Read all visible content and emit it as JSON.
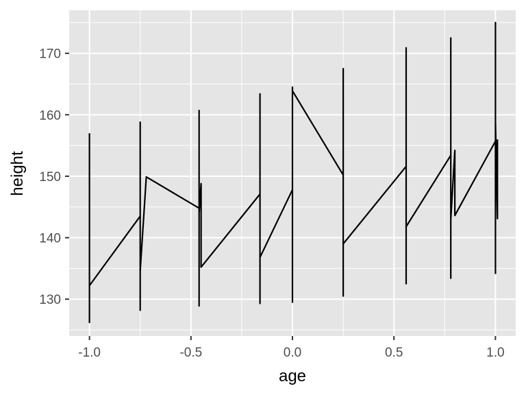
{
  "chart_data": {
    "type": "line",
    "xlabel": "age",
    "ylabel": "height",
    "xlim": [
      -1.1,
      1.1
    ],
    "ylim": [
      124,
      177
    ],
    "x_ticks": [
      -1.0,
      -0.5,
      0.0,
      0.5,
      1.0
    ],
    "x_tick_labels": [
      "-1.0",
      "-0.5",
      "0.0",
      "0.5",
      "1.0"
    ],
    "y_ticks": [
      130,
      140,
      150,
      160,
      170
    ],
    "y_tick_labels": [
      "130",
      "140",
      "150",
      "160",
      "170"
    ],
    "grid": true,
    "legend": "none",
    "colors": {
      "panel": "#e5e5e5",
      "grid": "#ffffff",
      "line": "#000000"
    },
    "series": [
      {
        "points": [
          [
            -1.0,
            157.0
          ],
          [
            -1.0,
            126.2
          ],
          [
            -1.0,
            132.2
          ],
          [
            -0.75,
            143.5
          ],
          [
            -0.75,
            158.8
          ],
          [
            -0.75,
            128.2
          ],
          [
            -0.75,
            134.6
          ],
          [
            -0.72,
            149.9
          ],
          [
            -0.46,
            144.8
          ],
          [
            -0.46,
            160.7
          ],
          [
            -0.46,
            128.9
          ],
          [
            -0.46,
            144.0
          ],
          [
            -0.45,
            148.8
          ],
          [
            -0.45,
            135.2
          ],
          [
            -0.16,
            147.1
          ],
          [
            -0.16,
            163.4
          ],
          [
            -0.16,
            129.3
          ],
          [
            -0.16,
            136.8
          ],
          [
            0.0,
            147.8
          ],
          [
            0.0,
            164.5
          ],
          [
            0.0,
            129.5
          ],
          [
            0.0,
            163.9
          ],
          [
            0.25,
            150.2
          ],
          [
            0.25,
            167.5
          ],
          [
            0.25,
            130.5
          ],
          [
            0.25,
            139.0
          ],
          [
            0.56,
            151.6
          ],
          [
            0.56,
            170.9
          ],
          [
            0.56,
            132.5
          ],
          [
            0.56,
            141.8
          ],
          [
            0.78,
            153.4
          ],
          [
            0.78,
            172.5
          ],
          [
            0.78,
            133.4
          ],
          [
            0.78,
            143.0
          ],
          [
            0.8,
            154.2
          ],
          [
            0.8,
            143.6
          ],
          [
            1.0,
            155.7
          ],
          [
            1.0,
            175.0
          ],
          [
            1.0,
            134.2
          ],
          [
            1.0,
            158.9
          ],
          [
            1.01,
            143.1
          ],
          [
            1.01,
            156.0
          ]
        ]
      }
    ]
  }
}
